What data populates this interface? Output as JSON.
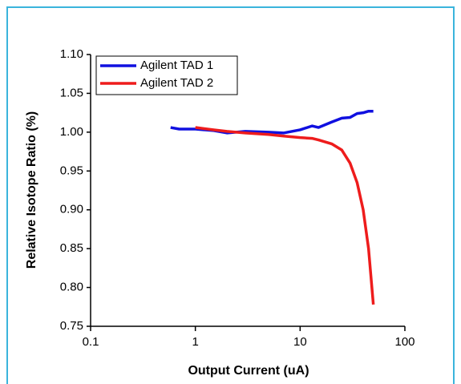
{
  "chart_data": {
    "type": "line",
    "x_label": "Output Current (uA)",
    "y_label": "Relative Isotope Ratio (%)",
    "x": [
      0.58,
      0.7,
      0.85,
      1,
      1.5,
      2,
      3,
      5,
      7,
      10,
      13,
      15,
      20,
      25,
      30,
      35,
      40,
      45,
      50
    ],
    "series": [
      {
        "name": "Agilent TAD 1",
        "color": "#1010e0",
        "values": [
          1.006,
          1.004,
          1.004,
          1.004,
          1.002,
          0.999,
          1.001,
          1.0,
          0.999,
          1.003,
          1.008,
          1.006,
          1.013,
          1.018,
          1.019,
          1.024,
          1.025,
          1.027,
          1.027
        ]
      },
      {
        "name": "Agilent TAD 2",
        "color": "#ee1c1c",
        "values": [
          null,
          null,
          null,
          1.006,
          1.003,
          1.001,
          0.999,
          0.997,
          0.995,
          0.993,
          0.992,
          0.99,
          0.985,
          0.977,
          0.96,
          0.935,
          0.9,
          0.85,
          0.778
        ]
      }
    ],
    "x_scale": "log",
    "xlim": [
      0.1,
      100
    ],
    "xticks": [
      0.1,
      1,
      10,
      100
    ],
    "ylim": [
      0.75,
      1.1
    ],
    "yticks": [
      0.75,
      {
        "value": 0.8,
        "label": "0.80"
      },
      0.85,
      {
        "value": 0.9,
        "label": "0.90"
      },
      0.95,
      {
        "value": 1.0,
        "label": "1.00"
      },
      1.05,
      {
        "value": 1.1,
        "label": "1.10"
      }
    ],
    "legend": "upper-left",
    "grid": false
  }
}
